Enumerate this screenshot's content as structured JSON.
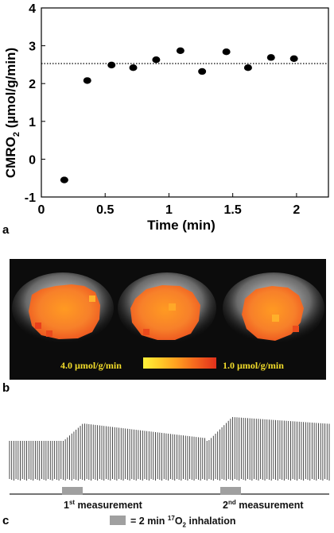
{
  "panels": {
    "a": "a",
    "b": "b",
    "c": "c"
  },
  "chart_data": {
    "type": "scatter",
    "xlabel": "Time (min)",
    "ylabel_main": "CMRO",
    "ylabel_sub": "2",
    "ylabel_rest": " (µmol/g/min)",
    "xlim": [
      0,
      2.25
    ],
    "ylim": [
      -1,
      4
    ],
    "xticks": [
      "0",
      "0.5",
      "1",
      "1.5",
      "2"
    ],
    "xtick_values": [
      0,
      0.5,
      1,
      1.5,
      2
    ],
    "yticks": [
      "4",
      "3",
      "2",
      "1",
      "0",
      "-1"
    ],
    "ytick_values": [
      4,
      3,
      2,
      1,
      0,
      -1
    ],
    "x": [
      0.18,
      0.36,
      0.55,
      0.72,
      0.9,
      1.09,
      1.26,
      1.45,
      1.62,
      1.8,
      1.98
    ],
    "y": [
      -0.55,
      2.08,
      2.49,
      2.42,
      2.63,
      2.87,
      2.32,
      2.84,
      2.42,
      2.69,
      2.66
    ],
    "reference_line_y": 2.53,
    "reference_line_style": "dotted",
    "grid": false
  },
  "panel_b": {
    "colorbar_high_label": "4.0 µmol/g/min",
    "colorbar_low_label": "1.0 µmol/g/min",
    "colors": {
      "high": "#fff23a",
      "mid": "#ffa020",
      "low": "#e0301c"
    }
  },
  "panel_c": {
    "measurement_1": {
      "prefix": "1",
      "suffix": "st",
      "rest": " measurement"
    },
    "measurement_2": {
      "prefix": "2",
      "suffix": "nd",
      "rest": " measurement"
    },
    "legend": {
      "pre": "= 2 min ",
      "isotope": "17",
      "molecule": "O",
      "molecule_sub": "2",
      "post": " inhalation"
    },
    "inhalation_color": "#a0a0a0"
  }
}
